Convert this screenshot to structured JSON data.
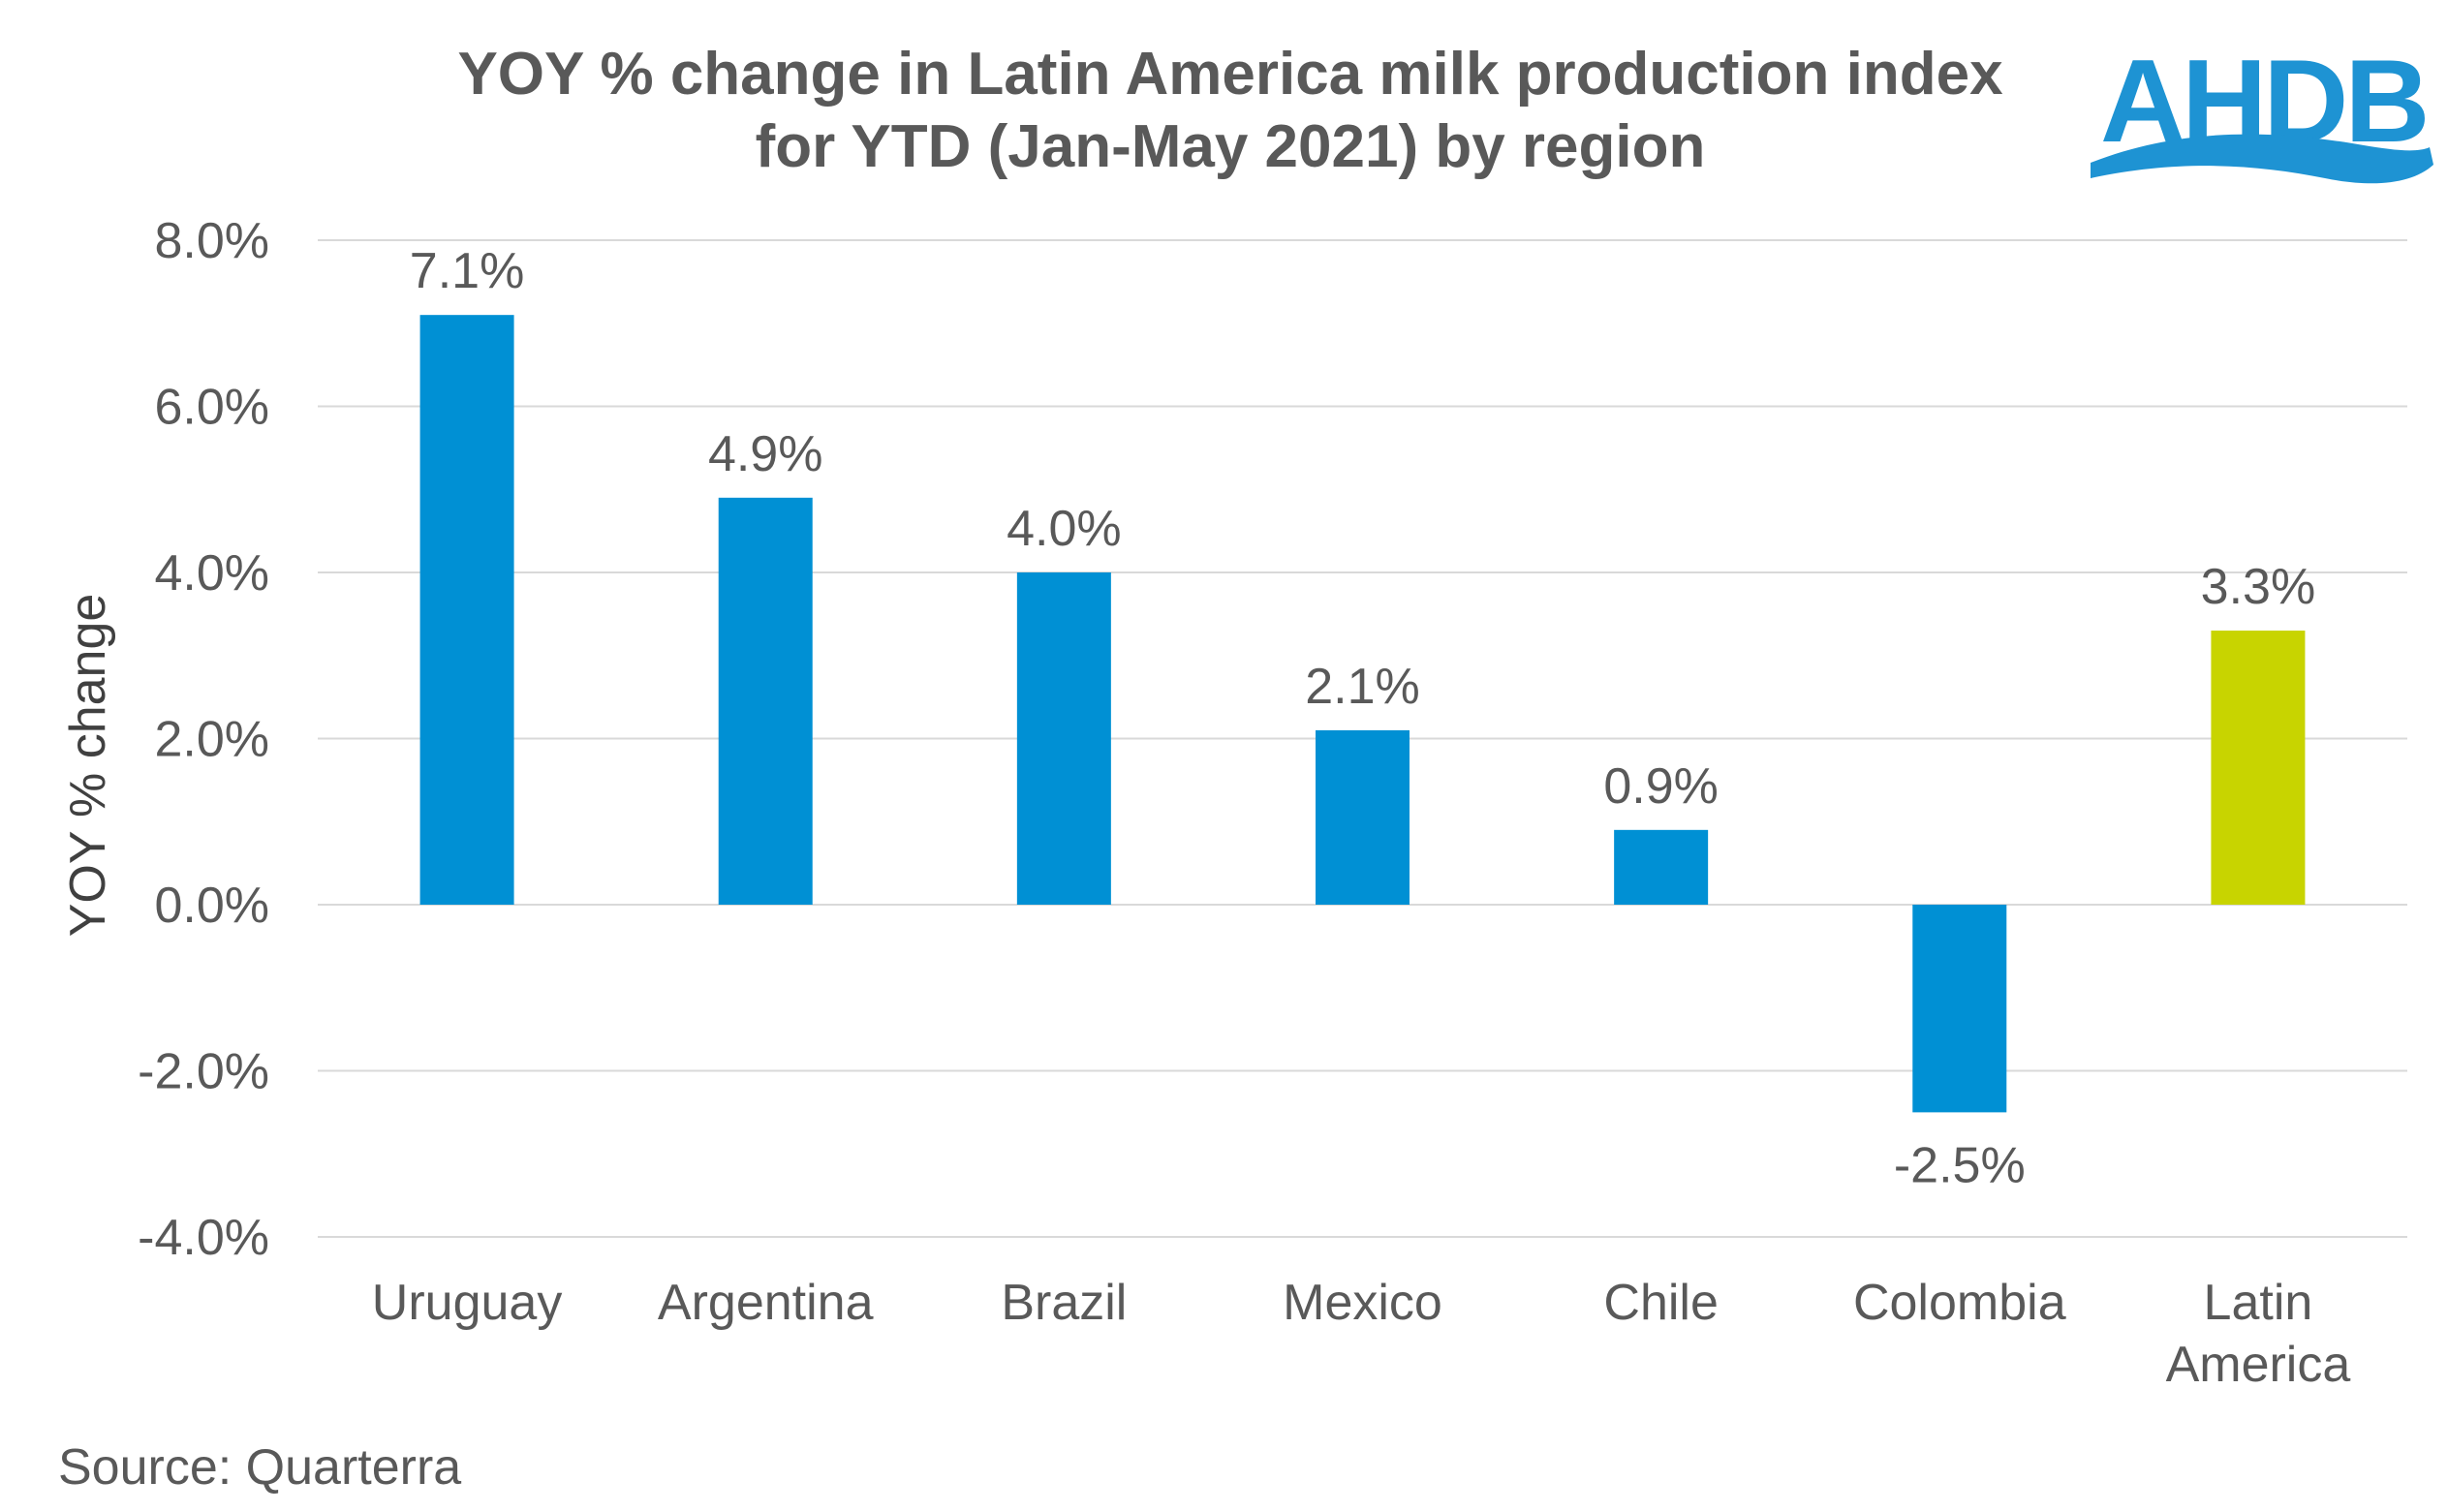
{
  "colors": {
    "bar": "#0090d4",
    "highlight": "#c8d400",
    "grid": "#d9d9d9",
    "text": "#595959",
    "logo": "#1e93d3"
  },
  "logo": {
    "text": "AHDB"
  },
  "source": "Source: Quarterra",
  "chart_data": {
    "type": "bar",
    "title_lines": [
      "YOY % change in Latin America milk production index",
      "for YTD (Jan-May 2021) by region"
    ],
    "xlabel": "",
    "ylabel": "YOY % change",
    "ylim": [
      -4.0,
      8.0
    ],
    "yticks": [
      {
        "value": 8.0,
        "label": "8.0%"
      },
      {
        "value": 6.0,
        "label": "6.0%"
      },
      {
        "value": 4.0,
        "label": "4.0%"
      },
      {
        "value": 2.0,
        "label": "2.0%"
      },
      {
        "value": 0.0,
        "label": "0.0%"
      },
      {
        "value": -2.0,
        "label": "-2.0%"
      },
      {
        "value": -4.0,
        "label": "-4.0%"
      }
    ],
    "categories": [
      [
        "Uruguay"
      ],
      [
        "Argentina"
      ],
      [
        "Brazil"
      ],
      [
        "Mexico"
      ],
      [
        "Chile"
      ],
      [
        "Colombia"
      ],
      [
        "Latin",
        "America"
      ]
    ],
    "values": [
      7.1,
      4.9,
      4.0,
      2.1,
      0.9,
      -2.5,
      3.3
    ],
    "value_labels": [
      "7.1%",
      "4.9%",
      "4.0%",
      "2.1%",
      "0.9%",
      "-2.5%",
      "3.3%"
    ],
    "highlight_index": 6,
    "grid": true,
    "legend": "none"
  }
}
